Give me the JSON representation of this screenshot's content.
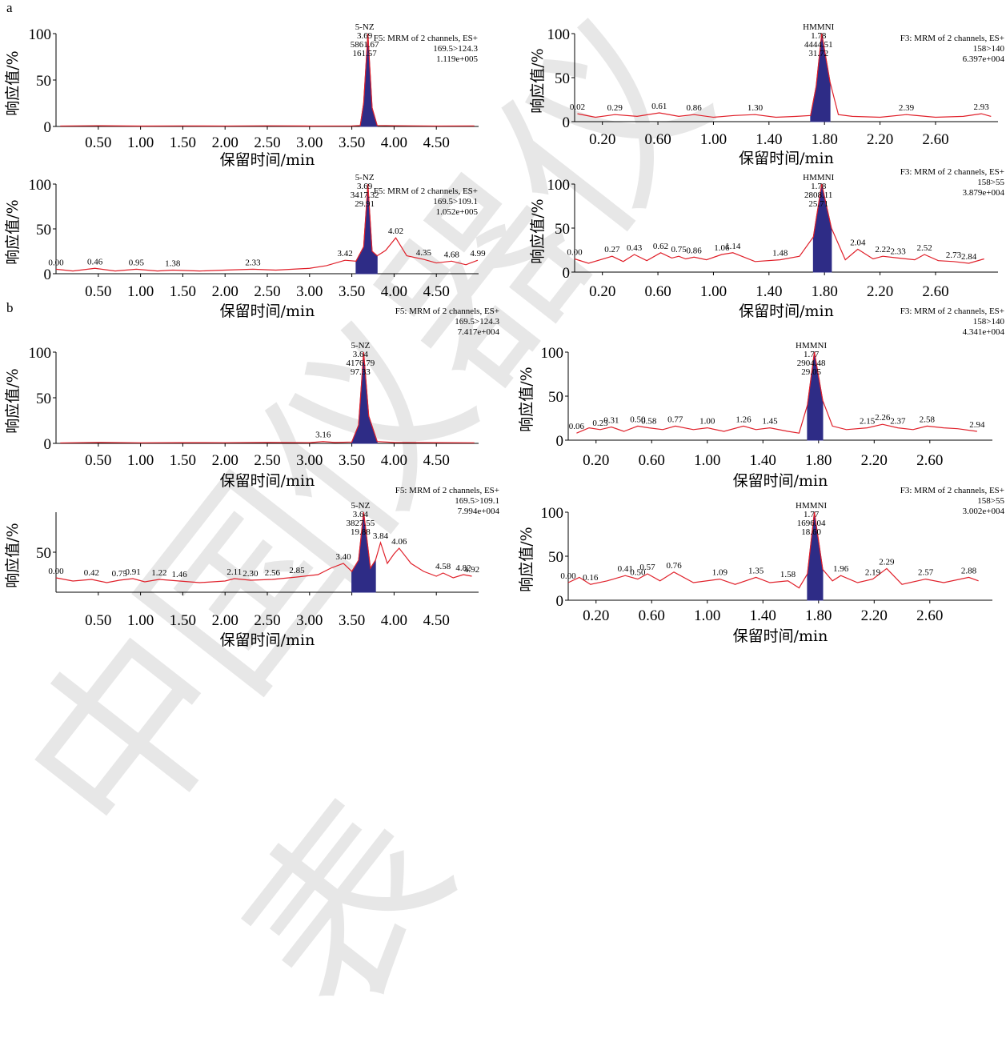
{
  "sections": [
    {
      "label": "a"
    },
    {
      "label": "b"
    }
  ],
  "watermark": {
    "text": "中国仪器仪表"
  },
  "colors": {
    "trace": "#e0202a",
    "peak": "#2e2c86",
    "axis": "#000000"
  },
  "common": {
    "xlabel": "保留时间/min",
    "ylabel": "响应值/%"
  },
  "chart_data": [
    {
      "type": "line",
      "title": "",
      "ylim": [
        0,
        100
      ],
      "xlim": [
        0,
        5
      ],
      "grid": false,
      "xticks": [
        "0.50",
        "1.00",
        "1.50",
        "2.00",
        "2.50",
        "3.00",
        "3.50",
        "4.00",
        "4.50"
      ],
      "yticks": [
        "0",
        "50",
        "100"
      ],
      "info": [
        "F5: MRM of 2 channels, ES+",
        "169.5>124.3",
        "1.119e+005"
      ],
      "peak": {
        "x": 3.69,
        "name": "5-NZ",
        "lines": [
          "5-NZ",
          "3.69",
          "5861.67",
          "161.57"
        ]
      },
      "labels": [],
      "series": [
        {
          "x": [
            0.05,
            0.5,
            1.0,
            1.5,
            2.0,
            2.5,
            3.0,
            3.5,
            3.6,
            3.64,
            3.69,
            3.74,
            3.8,
            4.0,
            4.5,
            4.95
          ],
          "y": [
            0.5,
            0.8,
            0.4,
            0.6,
            0.5,
            0.7,
            0.5,
            0.6,
            1,
            25,
            100,
            20,
            1,
            0.8,
            0.5,
            0.6
          ]
        }
      ]
    },
    {
      "type": "line",
      "title": "",
      "ylim": [
        0,
        100
      ],
      "xlim": [
        0,
        3.05
      ],
      "grid": false,
      "xticks": [
        "0.20",
        "0.60",
        "1.00",
        "1.40",
        "1.80",
        "2.20",
        "2.60"
      ],
      "yticks": [
        "0",
        "50",
        "100"
      ],
      "info": [
        "F3: MRM of 2 channels, ES+",
        "158>140",
        "6.397e+004"
      ],
      "peak": {
        "x": 1.78,
        "name": "HMMNI",
        "lines": [
          "HMMNI",
          "1.78",
          "4444.51",
          "31.72"
        ]
      },
      "labels": [
        {
          "x": 0.02,
          "t": "0.02"
        },
        {
          "x": 0.29,
          "t": "0.29"
        },
        {
          "x": 0.61,
          "t": "0.61"
        },
        {
          "x": 0.86,
          "t": "0.86"
        },
        {
          "x": 1.3,
          "t": "1.30"
        },
        {
          "x": 2.39,
          "t": "2.39"
        },
        {
          "x": 2.93,
          "t": "2.93"
        }
      ],
      "series": [
        {
          "x": [
            0.02,
            0.15,
            0.29,
            0.45,
            0.61,
            0.75,
            0.86,
            1.0,
            1.15,
            1.3,
            1.45,
            1.6,
            1.7,
            1.74,
            1.78,
            1.84,
            1.9,
            2.0,
            2.2,
            2.39,
            2.6,
            2.8,
            2.93,
            3.0
          ],
          "y": [
            9,
            5,
            8,
            6,
            10,
            6,
            8,
            5,
            7,
            8,
            5,
            6,
            7,
            40,
            100,
            45,
            8,
            6,
            5,
            8,
            5,
            6,
            9,
            6
          ]
        }
      ]
    },
    {
      "type": "line",
      "title": "",
      "ylim": [
        0,
        100
      ],
      "xlim": [
        0,
        5
      ],
      "grid": false,
      "xticks": [
        "0.50",
        "1.00",
        "1.50",
        "2.00",
        "2.50",
        "3.00",
        "3.50",
        "4.00",
        "4.50"
      ],
      "yticks": [
        "0",
        "50",
        "100"
      ],
      "info": [
        "F5: MRM of 2 channels, ES+",
        "169.5>109.1",
        "1.052e+005"
      ],
      "peak": {
        "x": 3.69,
        "name": "5-NZ",
        "lines": [
          "5-NZ",
          "3.69",
          "3417.32",
          "29.91"
        ]
      },
      "labels": [
        {
          "x": 0.0,
          "t": "0.00"
        },
        {
          "x": 0.46,
          "t": "0.46"
        },
        {
          "x": 0.95,
          "t": "0.95"
        },
        {
          "x": 1.38,
          "t": "1.38"
        },
        {
          "x": 2.33,
          "t": "2.33"
        },
        {
          "x": 3.42,
          "t": "3.42"
        },
        {
          "x": 4.02,
          "t": "4.02"
        },
        {
          "x": 4.35,
          "t": "4.35"
        },
        {
          "x": 4.68,
          "t": "4.68"
        },
        {
          "x": 4.99,
          "t": "4.99"
        }
      ],
      "series": [
        {
          "x": [
            0.0,
            0.2,
            0.46,
            0.7,
            0.95,
            1.2,
            1.38,
            1.7,
            2.0,
            2.33,
            2.6,
            3.0,
            3.2,
            3.42,
            3.55,
            3.64,
            3.69,
            3.74,
            3.8,
            3.9,
            4.02,
            4.15,
            4.35,
            4.5,
            4.68,
            4.85,
            4.99
          ],
          "y": [
            5,
            3,
            6,
            3,
            5,
            3,
            4,
            3,
            4,
            5,
            4,
            6,
            9,
            15,
            14,
            30,
            100,
            25,
            20,
            26,
            40,
            20,
            16,
            12,
            14,
            10,
            15
          ]
        }
      ]
    },
    {
      "type": "line",
      "title": "",
      "ylim": [
        0,
        100
      ],
      "xlim": [
        0,
        3.05
      ],
      "grid": false,
      "xticks": [
        "0.20",
        "0.60",
        "1.00",
        "1.40",
        "1.80",
        "2.20",
        "2.60"
      ],
      "yticks": [
        "0",
        "50",
        "100"
      ],
      "info": [
        "F3: MRM of 2 channels, ES+",
        "158>55",
        "3.879e+004"
      ],
      "peak": {
        "x": 1.78,
        "name": "HMMNI",
        "lines": [
          "HMMNI",
          "1.78",
          "2808.11",
          "25.71"
        ]
      },
      "labels": [
        {
          "x": 0.0,
          "t": "0.00"
        },
        {
          "x": 0.27,
          "t": "0.27"
        },
        {
          "x": 0.43,
          "t": "0.43"
        },
        {
          "x": 0.62,
          "t": "0.62"
        },
        {
          "x": 0.75,
          "t": "0.75"
        },
        {
          "x": 0.86,
          "t": "0.86"
        },
        {
          "x": 1.06,
          "t": "1.06"
        },
        {
          "x": 1.14,
          "t": "1.14"
        },
        {
          "x": 1.48,
          "t": "1.48"
        },
        {
          "x": 2.04,
          "t": "2.04"
        },
        {
          "x": 2.22,
          "t": "2.22"
        },
        {
          "x": 2.33,
          "t": "2.33"
        },
        {
          "x": 2.52,
          "t": "2.52"
        },
        {
          "x": 2.73,
          "t": "2.73"
        },
        {
          "x": 2.84,
          "t": "2.84"
        }
      ],
      "series": [
        {
          "x": [
            0.0,
            0.1,
            0.27,
            0.35,
            0.43,
            0.52,
            0.62,
            0.7,
            0.75,
            0.8,
            0.86,
            0.95,
            1.06,
            1.14,
            1.3,
            1.48,
            1.62,
            1.72,
            1.78,
            1.85,
            1.95,
            2.04,
            2.15,
            2.22,
            2.33,
            2.45,
            2.52,
            2.62,
            2.73,
            2.84,
            2.95
          ],
          "y": [
            15,
            10,
            18,
            12,
            20,
            13,
            22,
            16,
            18,
            15,
            17,
            14,
            20,
            22,
            12,
            14,
            18,
            40,
            100,
            50,
            14,
            26,
            15,
            18,
            16,
            14,
            20,
            13,
            12,
            10,
            15
          ]
        }
      ]
    },
    {
      "type": "line",
      "title": "",
      "ylim": [
        0,
        100
      ],
      "xlim": [
        0,
        5
      ],
      "grid": false,
      "xticks": [
        "0.50",
        "1.00",
        "1.50",
        "2.00",
        "2.50",
        "3.00",
        "3.50",
        "4.00",
        "4.50"
      ],
      "yticks": [
        "0",
        "50",
        "100"
      ],
      "info": [
        "F5: MRM of 2 channels, ES+",
        "169.5>124.3",
        "7.417e+004"
      ],
      "peak": {
        "x": 3.64,
        "name": "5-NZ",
        "lines": [
          "5-NZ",
          "3.64",
          "4176.79",
          "97.33"
        ]
      },
      "labels": [
        {
          "x": 3.16,
          "t": "3.16"
        }
      ],
      "series": [
        {
          "x": [
            0.05,
            0.5,
            1.0,
            1.5,
            2.0,
            2.5,
            3.0,
            3.16,
            3.3,
            3.5,
            3.58,
            3.64,
            3.7,
            3.8,
            4.0,
            4.5,
            4.95
          ],
          "y": [
            0.5,
            1,
            0.6,
            0.8,
            0.7,
            1,
            0.8,
            2,
            1,
            1.5,
            20,
            100,
            30,
            2,
            1,
            0.8,
            0.6
          ]
        }
      ]
    },
    {
      "type": "line",
      "title": "",
      "ylim": [
        0,
        100
      ],
      "xlim": [
        0,
        3.05
      ],
      "grid": false,
      "xticks": [
        "0.20",
        "0.60",
        "1.00",
        "1.40",
        "1.80",
        "2.20",
        "2.60"
      ],
      "yticks": [
        "0",
        "50",
        "100"
      ],
      "info": [
        "F3: MRM of 2 channels, ES+",
        "158>140",
        "4.341e+004"
      ],
      "peak": {
        "x": 1.77,
        "name": "HMMNI",
        "lines": [
          "HMMNI",
          "1.77",
          "2904.48",
          "29.05"
        ]
      },
      "labels": [
        {
          "x": 0.06,
          "t": "0.06"
        },
        {
          "x": 0.23,
          "t": "0.23"
        },
        {
          "x": 0.31,
          "t": "0.31"
        },
        {
          "x": 0.5,
          "t": "0.50"
        },
        {
          "x": 0.58,
          "t": "0.58"
        },
        {
          "x": 0.77,
          "t": "0.77"
        },
        {
          "x": 1.0,
          "t": "1.00"
        },
        {
          "x": 1.26,
          "t": "1.26"
        },
        {
          "x": 1.45,
          "t": "1.45"
        },
        {
          "x": 2.15,
          "t": "2.15"
        },
        {
          "x": 2.26,
          "t": "2.26"
        },
        {
          "x": 2.37,
          "t": "2.37"
        },
        {
          "x": 2.58,
          "t": "2.58"
        },
        {
          "x": 2.94,
          "t": "2.94"
        }
      ],
      "series": [
        {
          "x": [
            0.06,
            0.15,
            0.23,
            0.31,
            0.4,
            0.5,
            0.58,
            0.68,
            0.77,
            0.9,
            1.0,
            1.12,
            1.26,
            1.35,
            1.45,
            1.58,
            1.66,
            1.72,
            1.77,
            1.83,
            1.9,
            2.0,
            2.15,
            2.26,
            2.37,
            2.48,
            2.58,
            2.7,
            2.8,
            2.94
          ],
          "y": [
            8,
            14,
            12,
            15,
            10,
            16,
            14,
            12,
            16,
            12,
            14,
            10,
            16,
            12,
            14,
            10,
            8,
            40,
            100,
            45,
            16,
            12,
            14,
            18,
            14,
            12,
            16,
            14,
            13,
            10
          ]
        }
      ]
    },
    {
      "type": "line",
      "title": "",
      "ylim": [
        0,
        100
      ],
      "xlim": [
        0,
        5
      ],
      "grid": false,
      "xticks": [
        "0.50",
        "1.00",
        "1.50",
        "2.00",
        "2.50",
        "3.00",
        "3.50",
        "4.00",
        "4.50"
      ],
      "yticks": [
        "50"
      ],
      "info": [
        "F5: MRM of 2 channels, ES+",
        "169.5>109.1",
        "7.994e+004"
      ],
      "peak": {
        "x": 3.64,
        "name": "5-NZ",
        "lines": [
          "5-NZ",
          "3.64",
          "3827.55",
          "19.88"
        ]
      },
      "labels": [
        {
          "x": 0.0,
          "t": "0.00"
        },
        {
          "x": 0.42,
          "t": "0.42"
        },
        {
          "x": 0.75,
          "t": "0.75"
        },
        {
          "x": 0.91,
          "t": "0.91"
        },
        {
          "x": 1.22,
          "t": "1.22"
        },
        {
          "x": 1.46,
          "t": "1.46"
        },
        {
          "x": 2.11,
          "t": "2.11"
        },
        {
          "x": 2.3,
          "t": "2.30"
        },
        {
          "x": 2.56,
          "t": "2.56"
        },
        {
          "x": 2.85,
          "t": "2.85"
        },
        {
          "x": 3.4,
          "t": "3.40"
        },
        {
          "x": 3.84,
          "t": "3.84"
        },
        {
          "x": 4.06,
          "t": "4.06"
        },
        {
          "x": 4.58,
          "t": "4.58"
        },
        {
          "x": 4.82,
          "t": "4.82"
        },
        {
          "x": 4.92,
          "t": "4.92"
        }
      ],
      "series": [
        {
          "x": [
            0.0,
            0.2,
            0.42,
            0.6,
            0.75,
            0.91,
            1.05,
            1.22,
            1.46,
            1.7,
            2.0,
            2.11,
            2.3,
            2.56,
            2.85,
            3.1,
            3.25,
            3.4,
            3.5,
            3.58,
            3.64,
            3.72,
            3.78,
            3.84,
            3.92,
            4.0,
            4.06,
            4.2,
            4.35,
            4.5,
            4.58,
            4.7,
            4.82,
            4.92
          ],
          "y": [
            18,
            14,
            16,
            12,
            15,
            17,
            13,
            16,
            14,
            12,
            14,
            17,
            15,
            16,
            19,
            22,
            30,
            36,
            26,
            40,
            100,
            30,
            40,
            62,
            36,
            48,
            55,
            36,
            26,
            20,
            24,
            18,
            22,
            20
          ]
        }
      ]
    },
    {
      "type": "line",
      "title": "",
      "ylim": [
        0,
        100
      ],
      "xlim": [
        0,
        3.05
      ],
      "grid": false,
      "xticks": [
        "0.20",
        "0.60",
        "1.00",
        "1.40",
        "1.80",
        "2.20",
        "2.60"
      ],
      "yticks": [
        "0",
        "50",
        "100"
      ],
      "info": [
        "F3: MRM of 2 channels, ES+",
        "158>55",
        "3.002e+004"
      ],
      "peak": {
        "x": 1.77,
        "name": "HMMNI",
        "lines": [
          "HMMNI",
          "1.77",
          "1696.04",
          "18.60"
        ]
      },
      "labels": [
        {
          "x": 0.0,
          "t": "0.00"
        },
        {
          "x": 0.16,
          "t": "0.16"
        },
        {
          "x": 0.41,
          "t": "0.41"
        },
        {
          "x": 0.5,
          "t": "0.50"
        },
        {
          "x": 0.57,
          "t": "0.57"
        },
        {
          "x": 0.76,
          "t": "0.76"
        },
        {
          "x": 1.09,
          "t": "1.09"
        },
        {
          "x": 1.35,
          "t": "1.35"
        },
        {
          "x": 1.58,
          "t": "1.58"
        },
        {
          "x": 1.96,
          "t": "1.96"
        },
        {
          "x": 2.19,
          "t": "2.19"
        },
        {
          "x": 2.29,
          "t": "2.29"
        },
        {
          "x": 2.57,
          "t": "2.57"
        },
        {
          "x": 2.88,
          "t": "2.88"
        }
      ],
      "series": [
        {
          "x": [
            0.0,
            0.08,
            0.16,
            0.28,
            0.41,
            0.5,
            0.57,
            0.66,
            0.76,
            0.9,
            1.09,
            1.2,
            1.35,
            1.45,
            1.58,
            1.66,
            1.72,
            1.77,
            1.83,
            1.9,
            1.96,
            2.08,
            2.19,
            2.29,
            2.4,
            2.57,
            2.7,
            2.88,
            2.95
          ],
          "y": [
            20,
            26,
            18,
            22,
            28,
            24,
            30,
            22,
            32,
            20,
            24,
            18,
            26,
            20,
            22,
            14,
            30,
            100,
            35,
            22,
            28,
            20,
            24,
            36,
            18,
            24,
            20,
            26,
            22
          ]
        }
      ]
    }
  ]
}
